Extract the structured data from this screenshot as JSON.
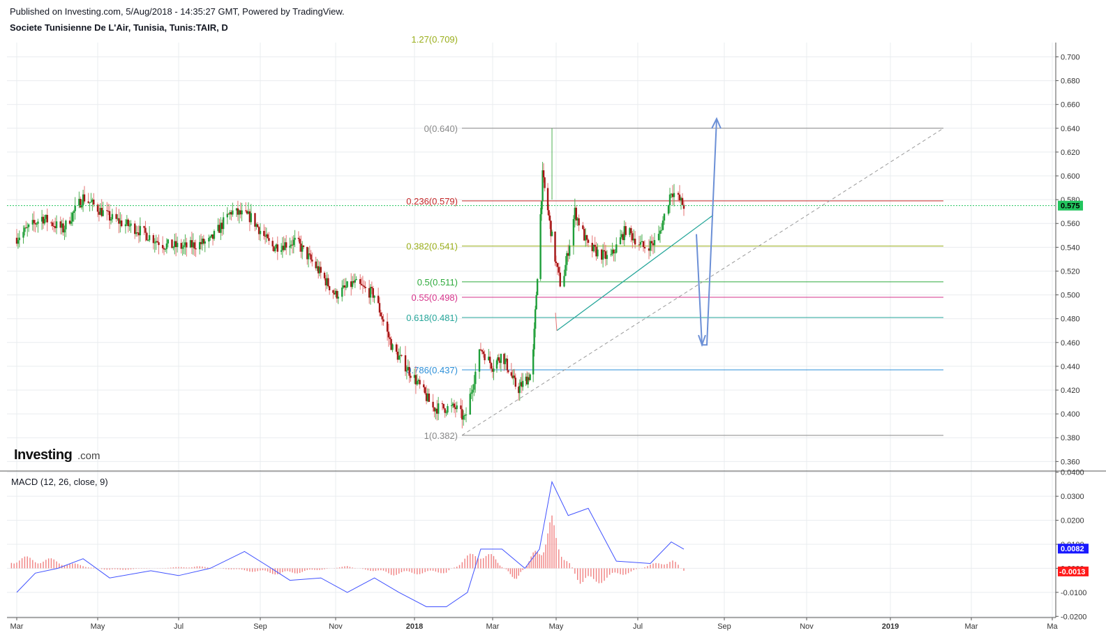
{
  "header": {
    "published": "Published on Investing.com, 5/Aug/2018 - 14:35:27 GMT, Powered by TradingView.",
    "symbol": "Societe Tunisienne De L'Air, Tunisia, Tunis:TAIR, D"
  },
  "logo": {
    "main": "Investing",
    "sub": ".com"
  },
  "colors": {
    "up": "#1e9e3a",
    "down": "#a31515",
    "wick_up": "#4caf50",
    "wick_down": "#e57373",
    "grid": "#e9ecef",
    "macd": "#3f51ff",
    "hist": "#f08080",
    "price_line": "#22c55e",
    "arrow": "#6b8fd6",
    "trend": "#26a69a",
    "dashed": "#999999"
  },
  "chart_data": {
    "type": "candlestick",
    "title": "Societe Tunisienne De L'Air, Tunisia, Tunis:TAIR, D",
    "x_ticks": [
      "Mar",
      "May",
      "Jul",
      "Sep",
      "Nov",
      "2018",
      "Mar",
      "May",
      "Jul",
      "Sep",
      "Nov",
      "2019",
      "Mar",
      "Ma"
    ],
    "y_ticks": [
      "0.700",
      "0.680",
      "0.660",
      "0.640",
      "0.620",
      "0.600",
      "0.580",
      "0.560",
      "0.540",
      "0.520",
      "0.500",
      "0.480",
      "0.460",
      "0.440",
      "0.420",
      "0.400",
      "0.380",
      "0.360"
    ],
    "ylim": [
      0.352,
      0.712
    ],
    "last_price": "0.575",
    "price_series": [
      [
        "2017-03-01",
        0.548
      ],
      [
        "2017-03-20",
        0.565
      ],
      [
        "2017-04-05",
        0.555
      ],
      [
        "2017-04-20",
        0.582
      ],
      [
        "2017-05-10",
        0.565
      ],
      [
        "2017-05-31",
        0.555
      ],
      [
        "2017-06-20",
        0.542
      ],
      [
        "2017-07-05",
        0.54
      ],
      [
        "2017-07-25",
        0.545
      ],
      [
        "2017-08-10",
        0.57
      ],
      [
        "2017-08-25",
        0.565
      ],
      [
        "2017-09-10",
        0.54
      ],
      [
        "2017-09-30",
        0.545
      ],
      [
        "2017-10-15",
        0.525
      ],
      [
        "2017-11-01",
        0.5
      ],
      [
        "2017-11-15",
        0.51
      ],
      [
        "2017-12-01",
        0.5
      ],
      [
        "2017-12-15",
        0.455
      ],
      [
        "2018-01-01",
        0.43
      ],
      [
        "2018-01-15",
        0.405
      ],
      [
        "2018-02-01",
        0.405
      ],
      [
        "2018-02-08",
        0.395
      ],
      [
        "2018-02-20",
        0.455
      ],
      [
        "2018-03-01",
        0.44
      ],
      [
        "2018-03-10",
        0.45
      ],
      [
        "2018-03-25",
        0.42
      ],
      [
        "2018-04-08",
        0.435
      ],
      [
        "2018-04-18",
        0.6
      ],
      [
        "2018-04-25",
        0.56
      ],
      [
        "2018-05-01",
        0.525
      ],
      [
        "2018-05-05",
        0.505
      ],
      [
        "2018-05-15",
        0.57
      ],
      [
        "2018-05-25",
        0.54
      ],
      [
        "2018-06-10",
        0.53
      ],
      [
        "2018-06-22",
        0.555
      ],
      [
        "2018-07-05",
        0.54
      ],
      [
        "2018-07-15",
        0.545
      ],
      [
        "2018-07-25",
        0.588
      ],
      [
        "2018-08-03",
        0.575
      ]
    ],
    "fib_levels": [
      {
        "label": "0(0.640)",
        "value": 0.64,
        "color": "#888888"
      },
      {
        "label": "0.236(0.579)",
        "value": 0.579,
        "color": "#c62828"
      },
      {
        "label": "0.382(0.541)",
        "value": 0.541,
        "color": "#9aae1a"
      },
      {
        "label": "0.5(0.511)",
        "value": 0.511,
        "color": "#2eaa3c"
      },
      {
        "label": "0.55(0.498)",
        "value": 0.498,
        "color": "#d6338a"
      },
      {
        "label": "0.618(0.481)",
        "value": 0.481,
        "color": "#26a69a"
      },
      {
        "label": "0.786(0.437)",
        "value": 0.437,
        "color": "#2b8fd8"
      },
      {
        "label": "1(0.382)",
        "value": 0.382,
        "color": "#888888"
      }
    ],
    "fib_top_label": "1.27(0.709)",
    "macd": {
      "label": "MACD (12, 26, close, 9)",
      "y_ticks": [
        "0.0400",
        "0.0300",
        "0.0200",
        "0.0100",
        "0.0000",
        "-0.0100",
        "-0.0200"
      ],
      "ylim": [
        -0.0205,
        0.0405
      ],
      "macd_value": "0.0082",
      "hist_value": "-0.0013",
      "macd_series": [
        [
          "2017-03-01",
          -0.01
        ],
        [
          "2017-03-15",
          -0.002
        ],
        [
          "2017-04-01",
          0.0
        ],
        [
          "2017-04-20",
          0.004
        ],
        [
          "2017-05-10",
          -0.004
        ],
        [
          "2017-06-10",
          -0.001
        ],
        [
          "2017-07-01",
          -0.003
        ],
        [
          "2017-07-25",
          0.0
        ],
        [
          "2017-08-20",
          0.007
        ],
        [
          "2017-09-10",
          0.0
        ],
        [
          "2017-09-25",
          -0.005
        ],
        [
          "2017-10-20",
          -0.004
        ],
        [
          "2017-11-10",
          -0.01
        ],
        [
          "2017-12-01",
          -0.004
        ],
        [
          "2017-12-20",
          -0.01
        ],
        [
          "2018-01-10",
          -0.016
        ],
        [
          "2018-01-25",
          -0.016
        ],
        [
          "2018-02-10",
          -0.01
        ],
        [
          "2018-02-20",
          0.008
        ],
        [
          "2018-03-10",
          0.008
        ],
        [
          "2018-04-01",
          0.0
        ],
        [
          "2018-04-15",
          0.008
        ],
        [
          "2018-04-27",
          0.036
        ],
        [
          "2018-05-10",
          0.022
        ],
        [
          "2018-05-25",
          0.025
        ],
        [
          "2018-06-15",
          0.003
        ],
        [
          "2018-07-10",
          0.002
        ],
        [
          "2018-07-25",
          0.011
        ],
        [
          "2018-08-03",
          0.008
        ]
      ],
      "hist_series": [
        [
          "2017-03-20",
          0.005
        ],
        [
          "2017-05-10",
          -0.001
        ],
        [
          "2017-07-15",
          0.001
        ],
        [
          "2017-09-20",
          -0.003
        ],
        [
          "2017-11-10",
          0.001
        ],
        [
          "2017-12-15",
          -0.003
        ],
        [
          "2018-01-25",
          -0.002
        ],
        [
          "2018-02-20",
          0.01
        ],
        [
          "2018-03-25",
          -0.006
        ],
        [
          "2018-04-27",
          0.022
        ],
        [
          "2018-05-20",
          -0.009
        ],
        [
          "2018-06-20",
          -0.003
        ],
        [
          "2018-07-25",
          0.005
        ],
        [
          "2018-08-03",
          -0.0013
        ]
      ]
    }
  }
}
